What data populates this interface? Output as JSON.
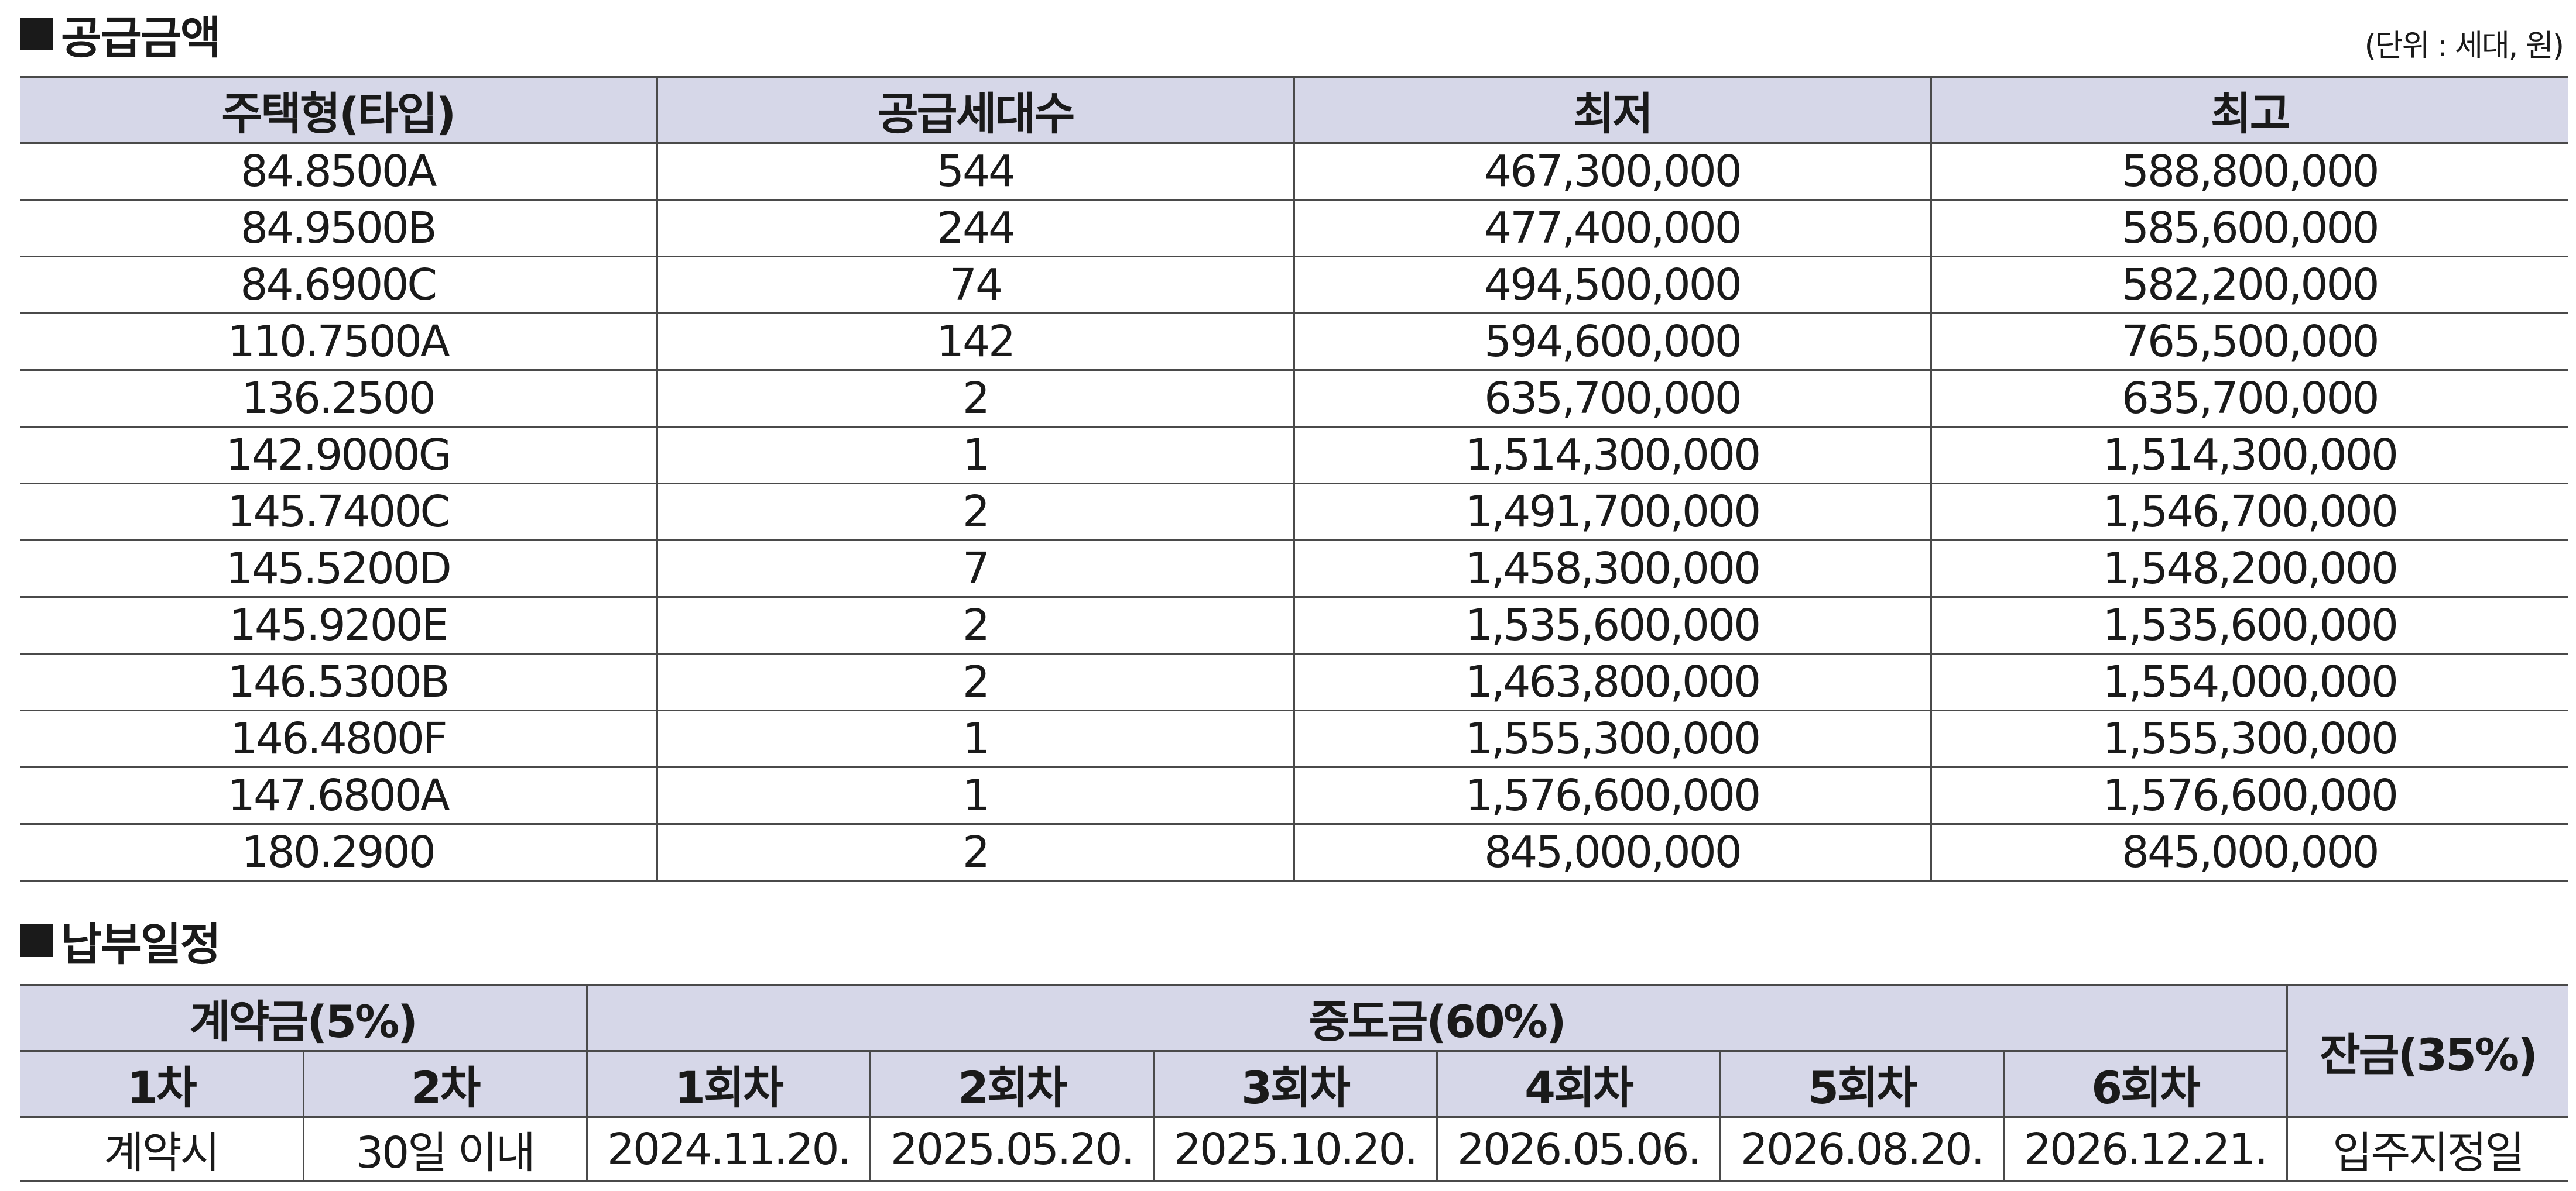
{
  "supply": {
    "title": "공급금액",
    "unit_note": "(단위 : 세대, 원)",
    "headers": [
      "주택형(타입)",
      "공급세대수",
      "최저",
      "최고"
    ],
    "rows": [
      [
        "84.8500A",
        "544",
        "467,300,000",
        "588,800,000"
      ],
      [
        "84.9500B",
        "244",
        "477,400,000",
        "585,600,000"
      ],
      [
        "84.6900C",
        "74",
        "494,500,000",
        "582,200,000"
      ],
      [
        "110.7500A",
        "142",
        "594,600,000",
        "765,500,000"
      ],
      [
        "136.2500",
        "2",
        "635,700,000",
        "635,700,000"
      ],
      [
        "142.9000G",
        "1",
        "1,514,300,000",
        "1,514,300,000"
      ],
      [
        "145.7400C",
        "2",
        "1,491,700,000",
        "1,546,700,000"
      ],
      [
        "145.5200D",
        "7",
        "1,458,300,000",
        "1,548,200,000"
      ],
      [
        "145.9200E",
        "2",
        "1,535,600,000",
        "1,535,600,000"
      ],
      [
        "146.5300B",
        "2",
        "1,463,800,000",
        "1,554,000,000"
      ],
      [
        "146.4800F",
        "1",
        "1,555,300,000",
        "1,555,300,000"
      ],
      [
        "147.6800A",
        "1",
        "1,576,600,000",
        "1,576,600,000"
      ],
      [
        "180.2900",
        "2",
        "845,000,000",
        "845,000,000"
      ]
    ]
  },
  "schedule": {
    "title": "납부일정",
    "groups": {
      "deposit": "계약금(5%)",
      "interim": "중도금(60%)",
      "balance": "잔금(35%)"
    },
    "subheaders": [
      "1차",
      "2차",
      "1회차",
      "2회차",
      "3회차",
      "4회차",
      "5회차",
      "6회차"
    ],
    "values": [
      "계약시",
      "30일 이내",
      "2024.11.20.",
      "2025.05.20.",
      "2025.10.20.",
      "2026.05.06.",
      "2026.08.20.",
      "2026.12.21.",
      "입주지정일"
    ]
  },
  "colors": {
    "header_bg": "#d6d7e8",
    "border": "#4a4a4a",
    "text": "#1a1a1a"
  }
}
